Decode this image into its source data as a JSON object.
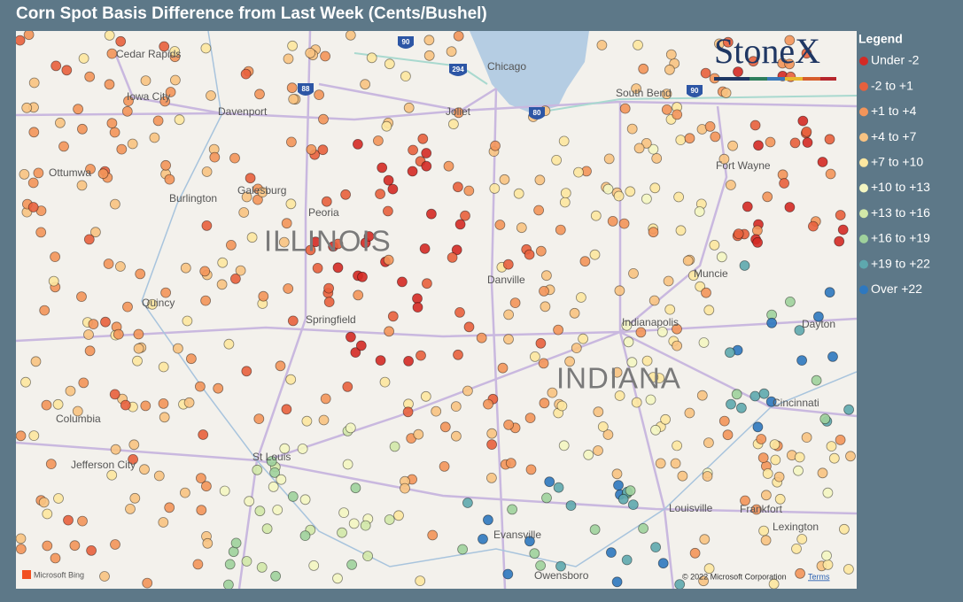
{
  "header": {
    "title": "Corn Spot Basis Difference from Last Week (Cents/Bushel)"
  },
  "logo": "StoneX",
  "legend": {
    "title": "Legend",
    "items": [
      {
        "label": "Under -2",
        "color": "#d42a25"
      },
      {
        "label": "-2 to +1",
        "color": "#e8603d"
      },
      {
        "label": "+1 to +4",
        "color": "#f3955a"
      },
      {
        "label": "+4 to +7",
        "color": "#f8c382"
      },
      {
        "label": "+7 to +10",
        "color": "#fde7a0"
      },
      {
        "label": "+10 to +13",
        "color": "#f4f6c2"
      },
      {
        "label": "+13 to +16",
        "color": "#d2e8a8"
      },
      {
        "label": "+16 to +19",
        "color": "#9fd19c"
      },
      {
        "label": "+19 to +22",
        "color": "#5ea8ae"
      },
      {
        "label": "Over +22",
        "color": "#2e78bf"
      }
    ]
  },
  "map": {
    "state_labels": [
      "ILLINOIS",
      "INDIANA"
    ],
    "cities": [
      "Cedar Rapids",
      "Iowa City",
      "Davenport",
      "Ottumwa",
      "Burlington",
      "Galesburg",
      "Peoria",
      "Quincy",
      "Springfield",
      "Columbia",
      "Jefferson City",
      "St Louis",
      "Joliet",
      "Chicago",
      "South Bend",
      "Fort Wayne",
      "Danville",
      "Muncie",
      "Indianapolis",
      "Dayton",
      "Cincinnati",
      "Louisville",
      "Frankfort",
      "Lexington",
      "Evansville",
      "Owensboro"
    ],
    "highways": [
      "90",
      "294",
      "88",
      "80",
      "90"
    ],
    "attribution": "Microsoft Bing",
    "copyright": "© 2022 Microsoft Corporation",
    "terms": "Terms"
  }
}
